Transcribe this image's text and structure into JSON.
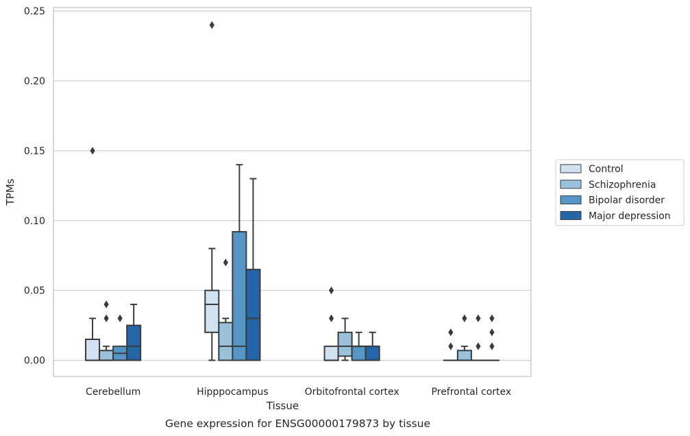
{
  "chart_data": {
    "type": "box",
    "caption": "Gene expression for ENSG00000179873 by tissue",
    "xlabel": "Tissue",
    "ylabel": "TPMs",
    "ylim": [
      -0.0115,
      0.2525
    ],
    "yticks": [
      0.0,
      0.05,
      0.1,
      0.15,
      0.2,
      0.25
    ],
    "ytick_labels": [
      "0.00",
      "0.05",
      "0.10",
      "0.15",
      "0.20",
      "0.25"
    ],
    "grid": "horizontal",
    "legend_position": "right",
    "categories": [
      "Cerebellum",
      "Hipppocampus",
      "Orbitofrontal cortex",
      "Prefrontal cortex"
    ],
    "series": [
      {
        "name": "Control",
        "color": "#d0e1f2",
        "boxes": [
          {
            "q1": 0.0,
            "median": 0.0,
            "q3": 0.015,
            "whisker_low": 0.0,
            "whisker_high": 0.03,
            "outliers": [
              0.15
            ]
          },
          {
            "q1": 0.02,
            "median": 0.04,
            "q3": 0.05,
            "whisker_low": 0.0,
            "whisker_high": 0.08,
            "outliers": [
              0.24
            ]
          },
          {
            "q1": 0.0,
            "median": 0.0,
            "q3": 0.01,
            "whisker_low": 0.0,
            "whisker_high": 0.01,
            "outliers": [
              0.03,
              0.05
            ]
          },
          {
            "q1": 0.0,
            "median": 0.0,
            "q3": 0.0,
            "whisker_low": 0.0,
            "whisker_high": 0.0,
            "outliers": [
              0.01,
              0.02
            ]
          }
        ]
      },
      {
        "name": "Schizophrenia",
        "color": "#9ac2dc",
        "boxes": [
          {
            "q1": 0.0,
            "median": 0.0,
            "q3": 0.007,
            "whisker_low": 0.0,
            "whisker_high": 0.01,
            "outliers": [
              0.03,
              0.04
            ]
          },
          {
            "q1": 0.0,
            "median": 0.01,
            "q3": 0.027,
            "whisker_low": 0.0,
            "whisker_high": 0.03,
            "outliers": [
              0.07
            ]
          },
          {
            "q1": 0.003,
            "median": 0.01,
            "q3": 0.02,
            "whisker_low": 0.0,
            "whisker_high": 0.03,
            "outliers": []
          },
          {
            "q1": 0.0,
            "median": 0.0,
            "q3": 0.007,
            "whisker_low": 0.0,
            "whisker_high": 0.01,
            "outliers": [
              0.03
            ]
          }
        ]
      },
      {
        "name": "Bipolar disorder",
        "color": "#5596c6",
        "boxes": [
          {
            "q1": 0.0,
            "median": 0.005,
            "q3": 0.01,
            "whisker_low": 0.0,
            "whisker_high": 0.01,
            "outliers": [
              0.03
            ]
          },
          {
            "q1": 0.0,
            "median": 0.01,
            "q3": 0.092,
            "whisker_low": 0.0,
            "whisker_high": 0.14,
            "outliers": []
          },
          {
            "q1": 0.0,
            "median": 0.01,
            "q3": 0.01,
            "whisker_low": 0.0,
            "whisker_high": 0.02,
            "outliers": []
          },
          {
            "q1": 0.0,
            "median": 0.0,
            "q3": 0.0,
            "whisker_low": 0.0,
            "whisker_high": 0.0,
            "outliers": [
              0.01,
              0.03
            ]
          }
        ]
      },
      {
        "name": "Major depression",
        "color": "#2465a7",
        "boxes": [
          {
            "q1": 0.0,
            "median": 0.01,
            "q3": 0.025,
            "whisker_low": 0.0,
            "whisker_high": 0.04,
            "outliers": []
          },
          {
            "q1": 0.0,
            "median": 0.03,
            "q3": 0.065,
            "whisker_low": 0.0,
            "whisker_high": 0.13,
            "outliers": []
          },
          {
            "q1": 0.0,
            "median": 0.01,
            "q3": 0.01,
            "whisker_low": 0.0,
            "whisker_high": 0.02,
            "outliers": []
          },
          {
            "q1": 0.0,
            "median": 0.0,
            "q3": 0.0,
            "whisker_low": 0.0,
            "whisker_high": 0.0,
            "outliers": [
              0.01,
              0.02,
              0.03
            ]
          }
        ]
      }
    ]
  }
}
